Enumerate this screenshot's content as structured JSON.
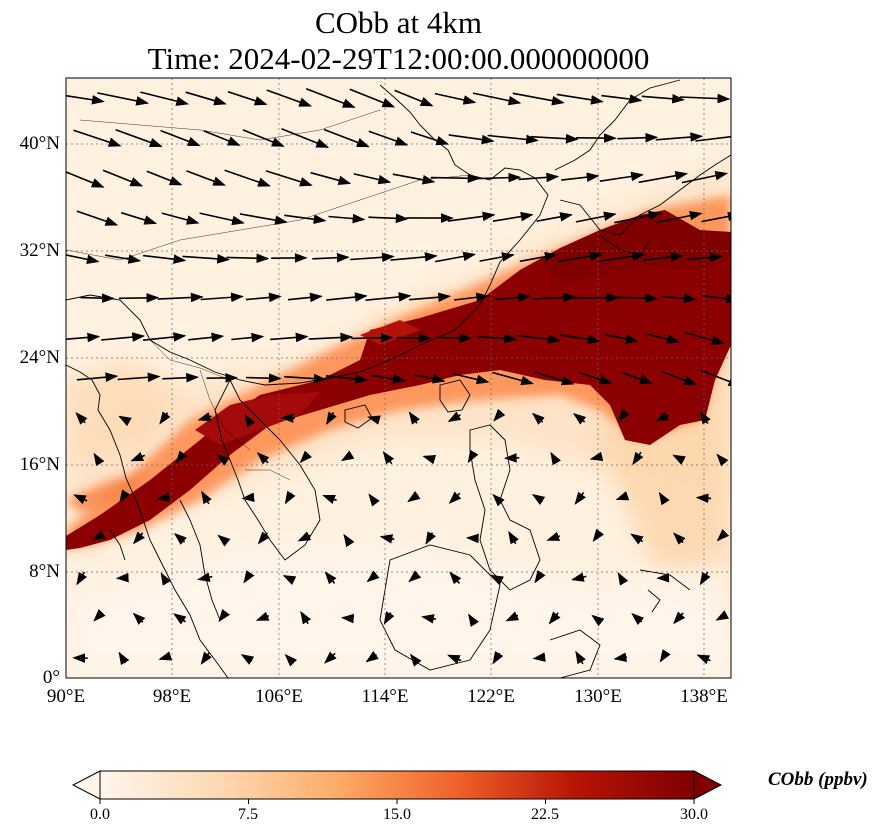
{
  "title": {
    "line1": "CObb at 4km",
    "line2": "Time: 2024-02-29T12:00:00.000000000"
  },
  "map": {
    "projection": "PlateCarree",
    "lon_range": [
      90,
      140
    ],
    "lat_range": [
      0,
      45
    ],
    "gridlines": "dotted",
    "x_ticks": [
      "90°E",
      "98°E",
      "106°E",
      "114°E",
      "122°E",
      "130°E",
      "138°E"
    ],
    "y_ticks": [
      "0°",
      "8°N",
      "16°N",
      "24°N",
      "32°N",
      "40°N"
    ],
    "field": "CObb",
    "plume": "high CObb band from Indochina (~90°E, 10°N) northeast across South China and Taiwan to south of Japan (~140°E, 30°N)"
  },
  "colorbar": {
    "label": "CObb (ppbv)",
    "ticks": [
      "0.0",
      "7.5",
      "15.0",
      "22.5",
      "30.0"
    ],
    "range": [
      0,
      30
    ],
    "extend": "both",
    "colors": [
      "#fff5eb",
      "#fdd0a2",
      "#fd8d3c",
      "#d94801",
      "#a50f15",
      "#7f0000"
    ]
  },
  "chart_data": {
    "type": "heatmap",
    "title": "CObb at 4km\nTime: 2024-02-29T12:00:00.000000000",
    "colorbar_label": "CObb (ppbv)",
    "vmin": 0,
    "vmax": 30,
    "x_ticks": [
      "90°E",
      "98°E",
      "106°E",
      "114°E",
      "122°E",
      "130°E",
      "138°E"
    ],
    "y_ticks": [
      "0°",
      "8°N",
      "16°N",
      "24°N",
      "32°N",
      "40°N"
    ],
    "vectors": "wind arrows: westerly/northwesterly flow north of ~20°N, weak variable flow over the tropics"
  }
}
